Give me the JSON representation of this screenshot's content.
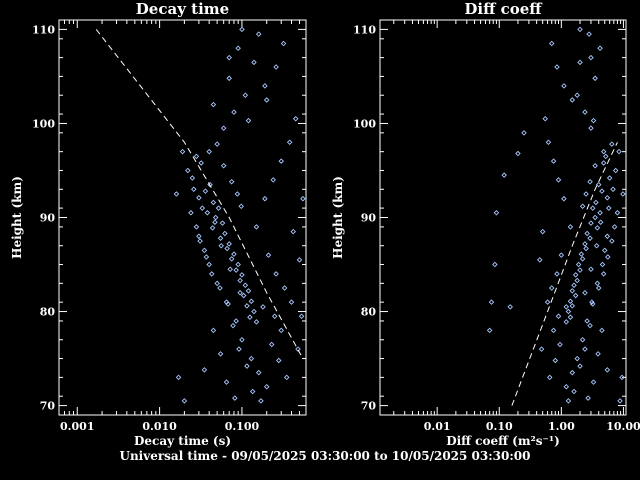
{
  "footer": "Universal time - 09/05/2025 03:30:00 to 10/05/2025 03:30:00",
  "colors": {
    "points": "#a8c8ff",
    "background": "#000000",
    "axes": "#ffffff"
  },
  "chart_data": [
    {
      "type": "scatter",
      "title": "Decay time",
      "xlabel": "Decay time (s)",
      "ylabel": "Height (km)",
      "xscale": "log",
      "xlim": [
        0.0006,
        0.6
      ],
      "ylim": [
        69,
        111
      ],
      "xticks": [
        0.001,
        0.01,
        0.1
      ],
      "xtick_labels": [
        "0.001",
        "0.010",
        "0.100"
      ],
      "yticks": [
        70,
        80,
        90,
        100,
        110
      ],
      "ytick_labels": [
        "70",
        "80",
        "90",
        "100",
        "110"
      ],
      "grid": false,
      "series": [
        {
          "style": "markers",
          "points": [
            [
              0.028,
              96.5
            ],
            [
              0.032,
              95.8
            ],
            [
              0.025,
              94.2
            ],
            [
              0.041,
              93.5
            ],
            [
              0.036,
              92.8
            ],
            [
              0.03,
              92.1
            ],
            [
              0.045,
              91.6
            ],
            [
              0.052,
              91.0
            ],
            [
              0.038,
              90.5
            ],
            [
              0.048,
              90.0
            ],
            [
              0.058,
              89.4
            ],
            [
              0.044,
              88.9
            ],
            [
              0.062,
              88.3
            ],
            [
              0.055,
              87.8
            ],
            [
              0.07,
              87.2
            ],
            [
              0.066,
              86.7
            ],
            [
              0.08,
              86.1
            ],
            [
              0.075,
              85.6
            ],
            [
              0.09,
              85.0
            ],
            [
              0.085,
              84.4
            ],
            [
              0.1,
              83.9
            ],
            [
              0.095,
              83.3
            ],
            [
              0.11,
              82.8
            ],
            [
              0.12,
              82.2
            ],
            [
              0.105,
              81.7
            ],
            [
              0.13,
              81.1
            ],
            [
              0.115,
              80.6
            ],
            [
              0.14,
              80.0
            ],
            [
              0.125,
              79.4
            ],
            [
              0.15,
              78.9
            ],
            [
              0.06,
              99.5
            ],
            [
              0.08,
              101.2
            ],
            [
              0.11,
              103.0
            ],
            [
              0.07,
              104.8
            ],
            [
              0.14,
              106.5
            ],
            [
              0.09,
              108.0
            ],
            [
              0.16,
              109.5
            ],
            [
              0.05,
              97.8
            ],
            [
              0.12,
              100.3
            ],
            [
              0.2,
              102.5
            ],
            [
              0.03,
              88.0
            ],
            [
              0.035,
              86.5
            ],
            [
              0.04,
              85.0
            ],
            [
              0.05,
              83.0
            ],
            [
              0.065,
              81.0
            ],
            [
              0.085,
              79.0
            ],
            [
              0.1,
              77.0
            ],
            [
              0.13,
              75.0
            ],
            [
              0.16,
              73.5
            ],
            [
              0.2,
              72.0
            ],
            [
              0.022,
              95.0
            ],
            [
              0.026,
              93.0
            ],
            [
              0.033,
              91.0
            ],
            [
              0.047,
              89.5
            ],
            [
              0.056,
              87.0
            ],
            [
              0.072,
              84.5
            ],
            [
              0.095,
              82.0
            ],
            [
              0.18,
              80.5
            ],
            [
              0.25,
              79.5
            ],
            [
              0.3,
              78.0
            ],
            [
              0.04,
              97.0
            ],
            [
              0.06,
              95.5
            ],
            [
              0.075,
              93.8
            ],
            [
              0.088,
              92.5
            ],
            [
              0.098,
              91.2
            ],
            [
              0.15,
              89.0
            ],
            [
              0.21,
              86.0
            ],
            [
              0.26,
              84.0
            ],
            [
              0.33,
              82.5
            ],
            [
              0.4,
              81.0
            ],
            [
              0.024,
              90.5
            ],
            [
              0.028,
              89.0
            ],
            [
              0.031,
              87.5
            ],
            [
              0.037,
              85.8
            ],
            [
              0.043,
              84.0
            ],
            [
              0.054,
              82.5
            ],
            [
              0.068,
              80.8
            ],
            [
              0.078,
              78.5
            ],
            [
              0.092,
              76.0
            ],
            [
              0.115,
              74.2
            ],
            [
              0.135,
              71.5
            ],
            [
              0.17,
              70.5
            ],
            [
              0.23,
              76.5
            ],
            [
              0.28,
              74.8
            ],
            [
              0.35,
              73.0
            ],
            [
              0.045,
              78.0
            ],
            [
              0.055,
              75.5
            ],
            [
              0.035,
              73.8
            ],
            [
              0.065,
              72.5
            ],
            [
              0.082,
              70.8
            ],
            [
              0.19,
              92.0
            ],
            [
              0.24,
              94.0
            ],
            [
              0.3,
              96.0
            ],
            [
              0.38,
              98.0
            ],
            [
              0.45,
              100.5
            ],
            [
              0.19,
              104.0
            ],
            [
              0.26,
              106.0
            ],
            [
              0.32,
              108.5
            ],
            [
              0.1,
              110.0
            ],
            [
              0.07,
              107.0
            ],
            [
              0.017,
              73.0
            ],
            [
              0.02,
              70.5
            ],
            [
              0.016,
              92.5
            ],
            [
              0.019,
              97.0
            ],
            [
              0.5,
              85.5
            ],
            [
              0.42,
              88.5
            ],
            [
              0.48,
              76.0
            ],
            [
              0.55,
              92.0
            ],
            [
              0.53,
              79.5
            ],
            [
              0.045,
              102.0
            ]
          ]
        },
        {
          "style": "dashed-line",
          "points": [
            [
              0.0017,
              110
            ],
            [
              0.02,
              98
            ],
            [
              0.07,
              90
            ],
            [
              0.2,
              82
            ],
            [
              0.55,
              75
            ]
          ]
        }
      ]
    },
    {
      "type": "scatter",
      "title": "Diff coeff",
      "xlabel": "Diff coeff",
      "xlabel_units": "(m²s⁻¹)",
      "ylabel": "Height (km)",
      "xscale": "log",
      "xlim": [
        0.0012,
        11
      ],
      "ylim": [
        69,
        111
      ],
      "xticks": [
        0.01,
        0.1,
        1,
        10
      ],
      "xtick_labels": [
        "0.01",
        "0.10",
        "1.00",
        "10.00"
      ],
      "yticks": [
        70,
        80,
        90,
        100,
        110
      ],
      "ytick_labels": [
        "70",
        "80",
        "90",
        "100",
        "110"
      ],
      "grid": false,
      "series": [
        {
          "style": "markers",
          "points": [
            [
              5.2,
              96.5
            ],
            [
              4.8,
              95.8
            ],
            [
              6.0,
              94.2
            ],
            [
              4.0,
              93.5
            ],
            [
              4.5,
              92.8
            ],
            [
              5.5,
              92.1
            ],
            [
              3.6,
              91.6
            ],
            [
              3.2,
              91.0
            ],
            [
              4.2,
              90.5
            ],
            [
              3.5,
              90.0
            ],
            [
              3.0,
              89.4
            ],
            [
              3.8,
              88.9
            ],
            [
              2.6,
              88.3
            ],
            [
              2.9,
              87.8
            ],
            [
              2.4,
              87.2
            ],
            [
              2.5,
              86.7
            ],
            [
              2.1,
              86.1
            ],
            [
              2.2,
              85.6
            ],
            [
              1.9,
              85.0
            ],
            [
              2.0,
              84.4
            ],
            [
              1.7,
              83.9
            ],
            [
              1.8,
              83.3
            ],
            [
              1.6,
              82.8
            ],
            [
              1.5,
              82.2
            ],
            [
              1.7,
              81.7
            ],
            [
              1.4,
              81.1
            ],
            [
              1.5,
              80.6
            ],
            [
              1.3,
              80.0
            ],
            [
              1.4,
              79.4
            ],
            [
              1.2,
              78.9
            ],
            [
              3.0,
              99.5
            ],
            [
              2.4,
              101.2
            ],
            [
              1.8,
              103.0
            ],
            [
              3.5,
              104.8
            ],
            [
              2.0,
              106.5
            ],
            [
              4.2,
              108.0
            ],
            [
              2.8,
              109.5
            ],
            [
              6.5,
              97.8
            ],
            [
              3.3,
              100.3
            ],
            [
              1.5,
              102.5
            ],
            [
              5.5,
              88.0
            ],
            [
              5.0,
              86.5
            ],
            [
              4.6,
              85.0
            ],
            [
              3.8,
              83.0
            ],
            [
              3.1,
              81.0
            ],
            [
              2.6,
              79.0
            ],
            [
              2.2,
              77.0
            ],
            [
              1.8,
              75.0
            ],
            [
              1.5,
              73.5
            ],
            [
              1.2,
              72.0
            ],
            [
              7.5,
              95.0
            ],
            [
              6.8,
              93.0
            ],
            [
              5.8,
              91.0
            ],
            [
              4.3,
              89.5
            ],
            [
              3.7,
              87.0
            ],
            [
              3.0,
              84.5
            ],
            [
              2.4,
              82.0
            ],
            [
              1.2,
              80.5
            ],
            [
              0.9,
              79.5
            ],
            [
              0.75,
              78.0
            ],
            [
              4.8,
              97.0
            ],
            [
              3.5,
              95.5
            ],
            [
              2.9,
              93.8
            ],
            [
              2.5,
              92.5
            ],
            [
              2.2,
              91.2
            ],
            [
              1.4,
              89.0
            ],
            [
              1.0,
              86.0
            ],
            [
              0.85,
              84.0
            ],
            [
              0.7,
              82.5
            ],
            [
              0.6,
              81.0
            ],
            [
              8.0,
              90.5
            ],
            [
              7.2,
              89.0
            ],
            [
              6.5,
              87.5
            ],
            [
              5.6,
              85.8
            ],
            [
              4.8,
              84.0
            ],
            [
              4.0,
              82.5
            ],
            [
              3.2,
              80.8
            ],
            [
              2.9,
              78.5
            ],
            [
              2.4,
              76.0
            ],
            [
              2.0,
              74.2
            ],
            [
              1.6,
              71.5
            ],
            [
              1.3,
              70.5
            ],
            [
              0.95,
              76.5
            ],
            [
              0.8,
              74.8
            ],
            [
              0.65,
              73.0
            ],
            [
              4.5,
              78.0
            ],
            [
              3.9,
              75.5
            ],
            [
              5.5,
              73.8
            ],
            [
              3.3,
              72.5
            ],
            [
              2.7,
              70.8
            ],
            [
              1.1,
              92.0
            ],
            [
              0.9,
              94.0
            ],
            [
              0.75,
              96.0
            ],
            [
              0.62,
              98.0
            ],
            [
              0.55,
              100.5
            ],
            [
              1.1,
              104.0
            ],
            [
              0.85,
              106.0
            ],
            [
              0.7,
              108.5
            ],
            [
              2.0,
              110.0
            ],
            [
              3.0,
              107.0
            ],
            [
              9.5,
              73.0
            ],
            [
              8.8,
              70.5
            ],
            [
              9.8,
              92.5
            ],
            [
              8.5,
              97.0
            ],
            [
              0.45,
              85.5
            ],
            [
              0.5,
              88.5
            ],
            [
              0.48,
              76.0
            ],
            [
              0.09,
              90.5
            ],
            [
              0.085,
              85.0
            ],
            [
              0.12,
              94.5
            ],
            [
              0.075,
              81.0
            ],
            [
              0.07,
              78.0
            ],
            [
              0.15,
              80.5
            ],
            [
              0.2,
              96.8
            ],
            [
              0.25,
              99.0
            ]
          ]
        },
        {
          "style": "dashed-line",
          "points": [
            [
              0.16,
              70
            ],
            [
              0.6,
              80
            ],
            [
              1.5,
              87
            ],
            [
              3.5,
              93
            ],
            [
              8.0,
              98
            ]
          ]
        }
      ]
    }
  ]
}
